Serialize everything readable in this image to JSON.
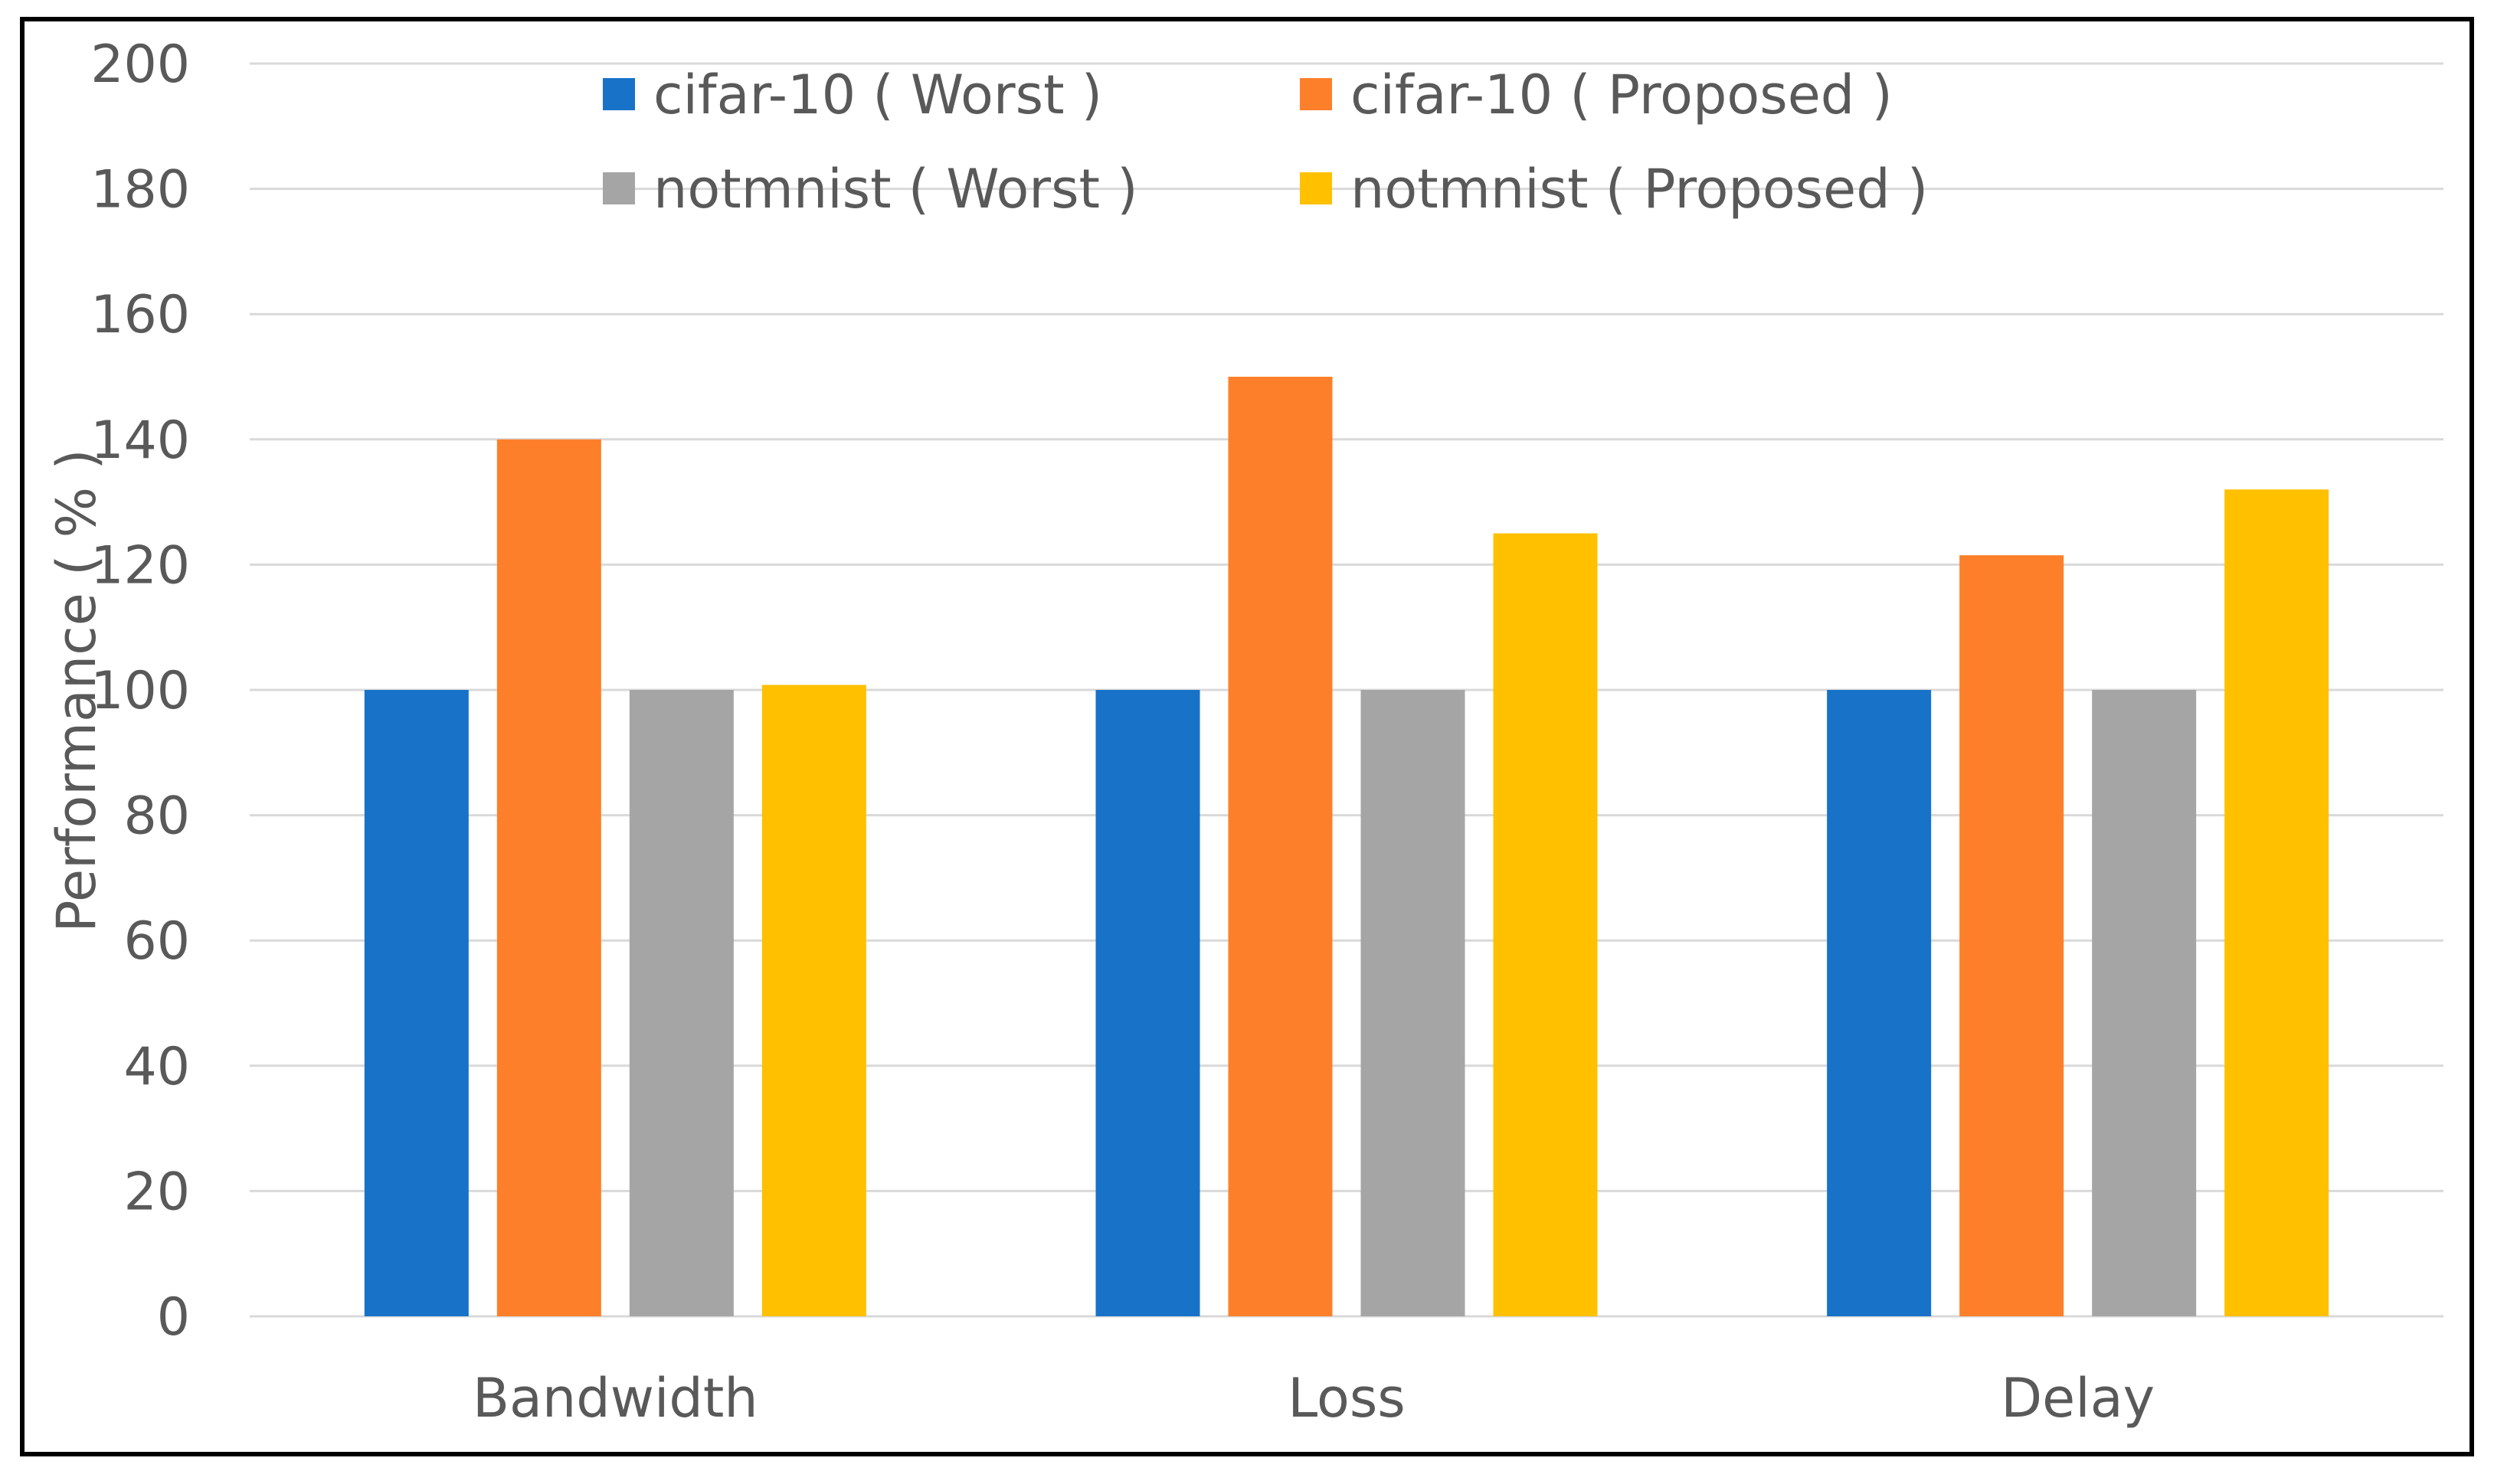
{
  "chart_data": {
    "type": "bar",
    "title": "",
    "xlabel": "",
    "ylabel": "Performance ( % )",
    "ylim": [
      0,
      200
    ],
    "yticks": [
      0,
      20,
      40,
      60,
      80,
      100,
      120,
      140,
      160,
      180,
      200
    ],
    "grid": true,
    "legend_position": "top",
    "categories": [
      "Bandwidth",
      "Loss",
      "Delay"
    ],
    "series": [
      {
        "name": "cifar-10 ( Worst )",
        "color": "#1772c8",
        "values": [
          100,
          100,
          100
        ]
      },
      {
        "name": "cifar-10 ( Proposed )",
        "color": "#fd7f2a",
        "values": [
          140,
          150,
          121.5
        ]
      },
      {
        "name": "notmnist ( Worst )",
        "color": "#a5a5a5",
        "values": [
          100,
          100,
          100
        ]
      },
      {
        "name": "notmnist ( Proposed )",
        "color": "#ffc000",
        "values": [
          100.8,
          125,
          132
        ]
      }
    ]
  }
}
